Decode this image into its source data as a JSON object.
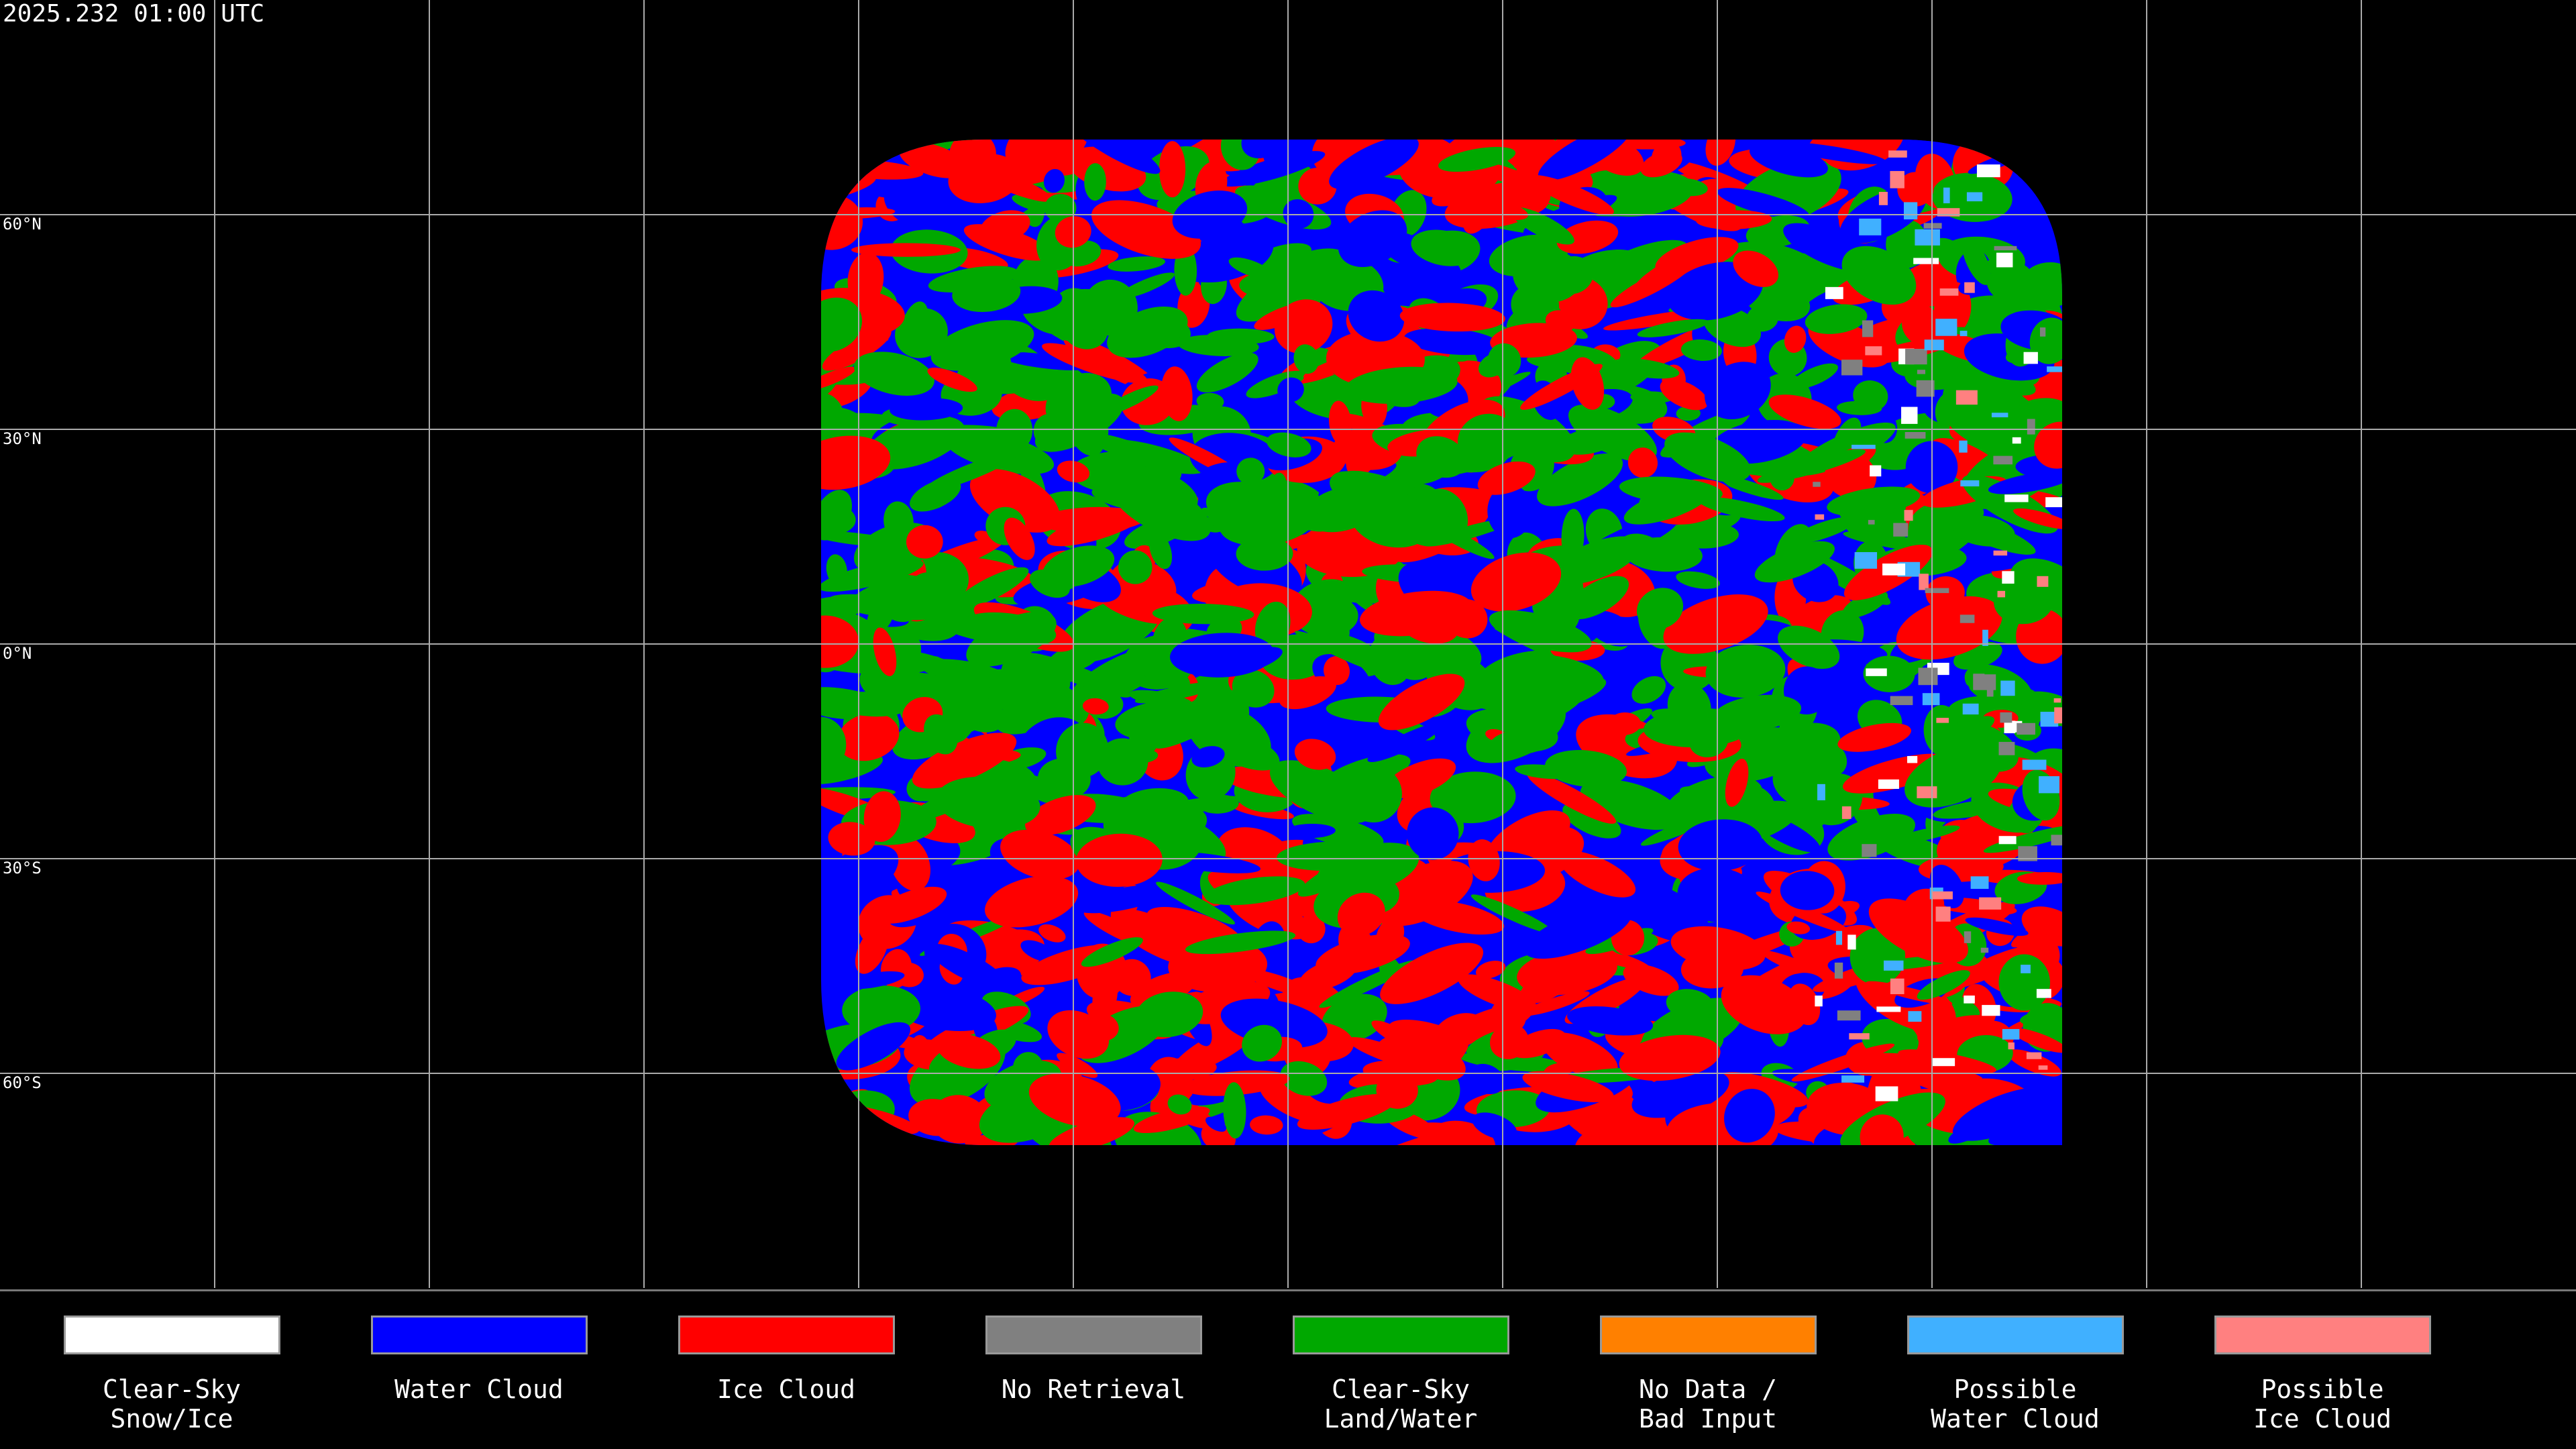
{
  "header": {
    "title": "2025.232 01:00 UTC"
  },
  "map": {
    "latitude_labels": [
      "60°N",
      "30°N",
      "0°N",
      "30°S",
      "60°S"
    ]
  },
  "legend": {
    "items": [
      {
        "label": "Clear-Sky\nSnow/Ice",
        "color": "#ffffff"
      },
      {
        "label": "Water Cloud",
        "color": "#0000ff"
      },
      {
        "label": "Ice Cloud",
        "color": "#ff0000"
      },
      {
        "label": "No Retrieval",
        "color": "#808080"
      },
      {
        "label": "Clear-Sky\nLand/Water",
        "color": "#00a800"
      },
      {
        "label": "No Data /\nBad Input",
        "color": "#ff8000"
      },
      {
        "label": "Possible\nWater Cloud",
        "color": "#40b0ff"
      },
      {
        "label": "Possible\nIce Cloud",
        "color": "#ff8080"
      }
    ]
  }
}
